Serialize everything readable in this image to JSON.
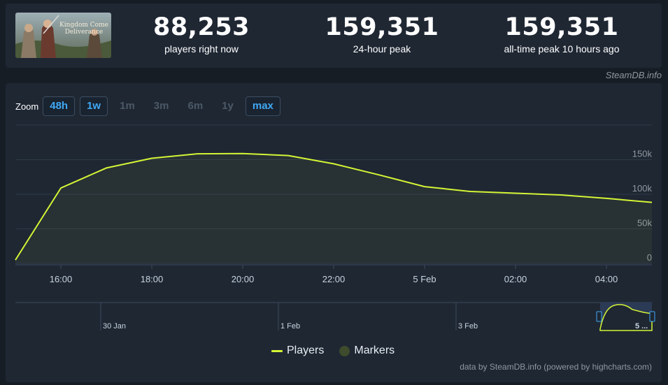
{
  "stats": {
    "current": {
      "value": "88,253",
      "label": "players right now"
    },
    "peak24": {
      "value": "159,351",
      "label": "24-hour peak"
    },
    "alltime": {
      "value": "159,351",
      "label": "all-time peak 10 hours ago"
    }
  },
  "game": {
    "logo_text_1": "Kingdom Come",
    "logo_text_2": "Deliverance"
  },
  "credit_top": "SteamDB.info",
  "zoom": {
    "label": "Zoom",
    "buttons": [
      {
        "label": "48h",
        "active": true
      },
      {
        "label": "1w",
        "active": true
      },
      {
        "label": "1m",
        "active": false
      },
      {
        "label": "3m",
        "active": false
      },
      {
        "label": "6m",
        "active": false
      },
      {
        "label": "1y",
        "active": false
      },
      {
        "label": "max",
        "active": true
      }
    ]
  },
  "legend": {
    "players": "Players",
    "markers": "Markers"
  },
  "credit_bottom": "data by SteamDB.info (powered by highcharts.com)",
  "colors": {
    "line": "#d4f535",
    "accent": "#3fa9f5",
    "marker": "#3e4b2c"
  },
  "chart_data": {
    "type": "line",
    "series": [
      {
        "name": "Players",
        "x": [
          "4 Feb 15:00",
          "16:00",
          "17:00",
          "18:00",
          "19:00",
          "20:00",
          "21:00",
          "22:00",
          "23:00",
          "5 Feb 00:00",
          "01:00",
          "02:00",
          "03:00",
          "04:00",
          "05:00"
        ],
        "values": [
          5000,
          109000,
          138000,
          152000,
          158500,
          158800,
          156000,
          144000,
          128000,
          111000,
          104000,
          101500,
          99000,
          94000,
          88253
        ]
      }
    ],
    "x_ticks": [
      "16:00",
      "18:00",
      "20:00",
      "22:00",
      "5 Feb",
      "02:00",
      "04:00"
    ],
    "y_ticks": [
      "0",
      "50k",
      "100k",
      "150k"
    ],
    "ylim": [
      0,
      200000
    ],
    "grid": true,
    "navigator": {
      "labels": [
        "30 Jan",
        "1 Feb",
        "3 Feb",
        "5 ..."
      ]
    },
    "legend_position": "bottom-center"
  }
}
